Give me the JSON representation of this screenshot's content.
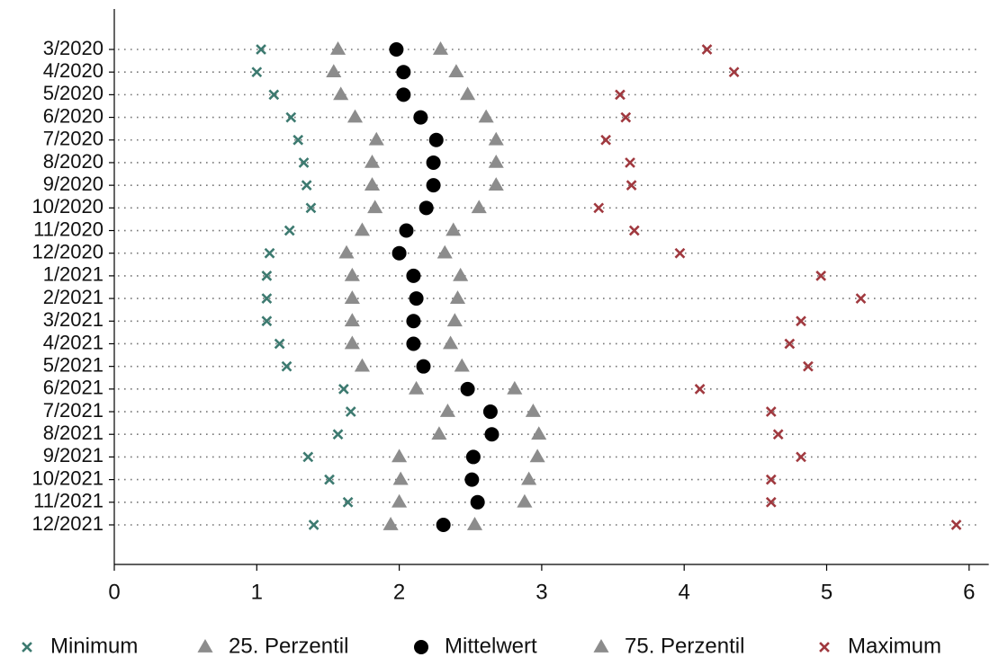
{
  "chart_data": {
    "type": "dot",
    "categories": [
      "3/2020",
      "4/2020",
      "5/2020",
      "6/2020",
      "7/2020",
      "8/2020",
      "9/2020",
      "10/2020",
      "11/2020",
      "12/2020",
      "1/2021",
      "2/2021",
      "3/2021",
      "4/2021",
      "5/2021",
      "6/2021",
      "7/2021",
      "8/2021",
      "9/2021",
      "10/2021",
      "11/2021",
      "12/2021"
    ],
    "series": [
      {
        "name": "Minimum",
        "color": "#3d7a70",
        "marker": "x",
        "values": [
          1.03,
          1.0,
          1.12,
          1.24,
          1.29,
          1.33,
          1.35,
          1.38,
          1.23,
          1.09,
          1.07,
          1.07,
          1.07,
          1.16,
          1.21,
          1.61,
          1.66,
          1.57,
          1.36,
          1.51,
          1.64,
          1.4
        ]
      },
      {
        "name": "25. Perzentil",
        "color": "#8c8c8c",
        "marker": "triangle",
        "values": [
          1.57,
          1.54,
          1.59,
          1.69,
          1.84,
          1.81,
          1.81,
          1.83,
          1.74,
          1.63,
          1.67,
          1.67,
          1.67,
          1.67,
          1.74,
          2.12,
          2.34,
          2.28,
          2.0,
          2.01,
          2.0,
          1.94
        ]
      },
      {
        "name": "Mittelwert",
        "color": "#000000",
        "marker": "circle",
        "values": [
          1.98,
          2.03,
          2.03,
          2.15,
          2.26,
          2.24,
          2.24,
          2.19,
          2.05,
          2.0,
          2.1,
          2.12,
          2.1,
          2.1,
          2.17,
          2.48,
          2.64,
          2.65,
          2.52,
          2.51,
          2.55,
          2.31
        ]
      },
      {
        "name": "75. Perzentil",
        "color": "#8c8c8c",
        "marker": "triangle",
        "values": [
          2.29,
          2.4,
          2.48,
          2.61,
          2.68,
          2.68,
          2.68,
          2.56,
          2.38,
          2.32,
          2.43,
          2.41,
          2.39,
          2.36,
          2.44,
          2.81,
          2.94,
          2.98,
          2.97,
          2.91,
          2.88,
          2.53
        ]
      },
      {
        "name": "Maximum",
        "color": "#a0393f",
        "marker": "x",
        "values": [
          4.16,
          4.35,
          3.55,
          3.59,
          3.45,
          3.62,
          3.63,
          3.4,
          3.65,
          3.97,
          4.96,
          5.24,
          4.82,
          4.74,
          4.87,
          4.11,
          4.61,
          4.66,
          4.82,
          4.61,
          4.61,
          5.91
        ]
      }
    ],
    "xlim": [
      0,
      6.1
    ],
    "xticks": [
      0,
      1,
      2,
      3,
      4,
      5,
      6
    ],
    "row_guides": "dotted"
  }
}
